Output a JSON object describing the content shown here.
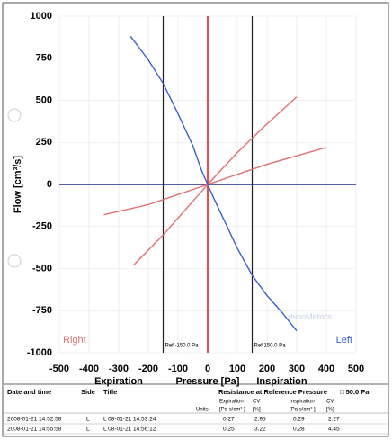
{
  "chart_data": {
    "type": "line",
    "y_label": "Flow [cm³/s]",
    "x_label": "Pressure [Pa]",
    "x_left_label": "Expiration",
    "x_right_label": "Inspiration",
    "watermark": "rhinoMetrics",
    "xlim": [
      -500,
      500
    ],
    "xticks": [
      -500,
      -400,
      -300,
      -200,
      -100,
      0,
      100,
      200,
      300,
      400,
      500
    ],
    "ylim": [
      -1000,
      1000
    ],
    "yticks": [
      -1000,
      -750,
      -500,
      -250,
      0,
      250,
      500,
      750,
      1000
    ],
    "grid": true,
    "ref_lines": [
      {
        "value": -150,
        "label": "Ref -150.0 Pa"
      },
      {
        "value": 150,
        "label": "Ref 150.0 Pa"
      }
    ],
    "series": [
      {
        "name": "Right",
        "color": "#e07070",
        "x": [
          -350,
          -200,
          -100,
          0,
          100,
          200,
          300,
          400,
          null,
          -250,
          -150,
          -50,
          0,
          100,
          200,
          300
        ],
        "values": [
          -180,
          -120,
          -60,
          0,
          60,
          120,
          170,
          220,
          null,
          -480,
          -300,
          -100,
          0,
          190,
          360,
          520
        ]
      },
      {
        "name": "Left",
        "color": "#3a5fcd",
        "x": [
          -260,
          -200,
          -150,
          -100,
          -50,
          -20,
          0,
          20,
          60,
          100,
          150,
          200,
          250,
          300
        ],
        "values": [
          880,
          740,
          600,
          420,
          230,
          80,
          0,
          -80,
          -230,
          -380,
          -540,
          -660,
          -760,
          -870
        ]
      }
    ]
  },
  "table": {
    "header": [
      "Date and time",
      "Side",
      "Title",
      "Resistance at Reference Pressure",
      "□ 50.0 Pa"
    ],
    "subheader": [
      "Expiration",
      "CV",
      "Inspiration",
      "CV"
    ],
    "units": [
      "Units:",
      "[Pa s/cm³ ]",
      "[%]",
      "[Pa s/cm³ ]",
      "[%]"
    ],
    "rows": [
      [
        "2008-01-21 14:52:58",
        "L",
        "L 08-01-21 14:53:24",
        "0.27",
        "2.95",
        "0.29",
        "2.27"
      ],
      [
        "2008-01-21 14:55:58",
        "L",
        "L 08-01-21 14:56:12",
        "0.25",
        "3.22",
        "0.28",
        "4.45"
      ]
    ]
  }
}
